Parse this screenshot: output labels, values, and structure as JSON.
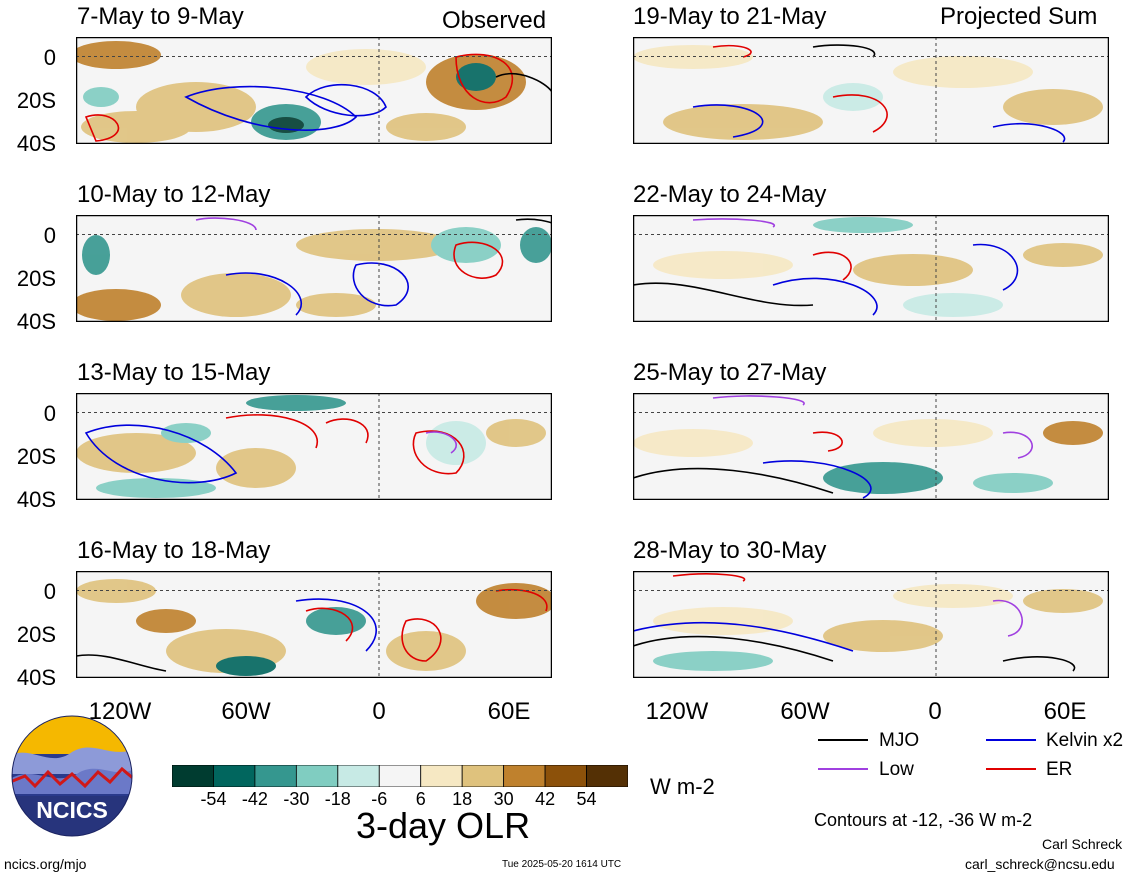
{
  "headers": {
    "left": "Observed",
    "right": "Projected Sum"
  },
  "panels": [
    {
      "title": "7-May to 9-May"
    },
    {
      "title": "10-May to 12-May"
    },
    {
      "title": "13-May to 15-May"
    },
    {
      "title": "16-May to 18-May"
    },
    {
      "title": "19-May to 21-May"
    },
    {
      "title": "22-May to 24-May"
    },
    {
      "title": "25-May to 27-May"
    },
    {
      "title": "28-May to 30-May"
    }
  ],
  "y_ticks": [
    "0",
    "20S",
    "40S"
  ],
  "x_ticks": [
    "120W",
    "60W",
    "0",
    "60E"
  ],
  "colorbar": {
    "labels": [
      "-54",
      "-42",
      "-30",
      "-18",
      "-6",
      "6",
      "18",
      "30",
      "42",
      "54"
    ],
    "colors": [
      "#003c30",
      "#01665e",
      "#35978f",
      "#80cdc1",
      "#c7eae5",
      "#f5f5f5",
      "#f6e8c3",
      "#dfc27d",
      "#bf812d",
      "#8c510a",
      "#543005"
    ],
    "units": "W m-2",
    "title": "3-day OLR"
  },
  "legend": {
    "items": [
      {
        "label": "MJO",
        "color": "#000000"
      },
      {
        "label": "Kelvin x2",
        "color": "#0000dd"
      },
      {
        "label": "Low",
        "color": "#a040e0"
      },
      {
        "label": "ER",
        "color": "#e00000"
      }
    ],
    "contour_note": "Contours at -12, -36 W m-2"
  },
  "logo": {
    "text": "NCICS"
  },
  "footer": {
    "url": "ncics.org/mjo",
    "timestamp": "Tue 2025-05-20 1614 UTC",
    "author": "Carl Schreck",
    "email": "carl_schreck@ncsu.edu"
  }
}
